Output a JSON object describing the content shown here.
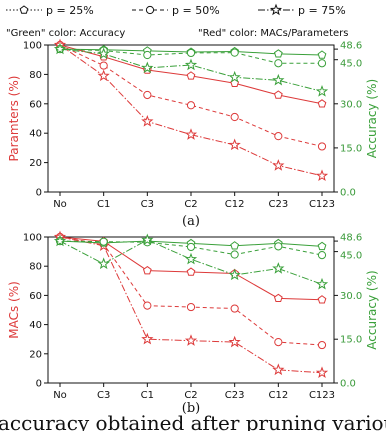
{
  "legend": {
    "entries": [
      {
        "label": "p = 25%",
        "marker": "pentagon",
        "dash": "1.5,2"
      },
      {
        "label": "p = 50%",
        "marker": "circle",
        "dash": "4,3"
      },
      {
        "label": "p = 75%",
        "marker": "star",
        "dash": "7,2,1.5,2"
      }
    ]
  },
  "notes": {
    "green": "\"Green\" color: Accuracy",
    "red": "\"Red\" color: MACs/Parameters"
  },
  "caption_fragment": "accuracy obtained after pruning various",
  "colors": {
    "red": "#dd3a3a",
    "green": "#3aa03a"
  },
  "chart_data": [
    {
      "type": "line",
      "panel_label": "(a)",
      "categories": [
        "No",
        "C1",
        "C3",
        "C2",
        "C12",
        "C23",
        "C123"
      ],
      "ylabel": "Paramters (%)",
      "ylim": [
        0,
        100
      ],
      "yticks": [
        0,
        20,
        40,
        60,
        80,
        100
      ],
      "y2label": "Accuracy (%)",
      "y2lim": [
        0,
        50
      ],
      "y2ticks": [
        0.0,
        15.0,
        30.0,
        45.0,
        48.6
      ],
      "series": [
        {
          "name": "Parameters p = 25%",
          "axis": "left",
          "color": "red",
          "marker": "pentagon",
          "values": [
            100,
            92,
            83,
            79,
            74,
            66,
            60
          ]
        },
        {
          "name": "Parameters p = 50%",
          "axis": "left",
          "color": "red",
          "marker": "circle",
          "values": [
            100,
            86,
            66,
            59,
            51,
            38,
            31
          ]
        },
        {
          "name": "Parameters p = 75%",
          "axis": "left",
          "color": "red",
          "marker": "star",
          "values": [
            100,
            79,
            48,
            39,
            32,
            18,
            11
          ]
        },
        {
          "name": "Accuracy p = 25%",
          "axis": "right",
          "color": "green",
          "marker": "pentagon",
          "values": [
            48.6,
            48.4,
            48.0,
            47.6,
            47.8,
            47.0,
            46.6
          ]
        },
        {
          "name": "Accuracy p = 50%",
          "axis": "right",
          "color": "green",
          "marker": "circle",
          "values": [
            48.6,
            48.1,
            46.6,
            47.3,
            47.4,
            43.8,
            43.8
          ]
        },
        {
          "name": "Accuracy p = 75%",
          "axis": "right",
          "color": "green",
          "marker": "star",
          "values": [
            48.6,
            47.0,
            42.2,
            43.2,
            39.0,
            38.0,
            34.2
          ]
        }
      ]
    },
    {
      "type": "line",
      "panel_label": "(b)",
      "categories": [
        "No",
        "C3",
        "C1",
        "C2",
        "C23",
        "C12",
        "C123"
      ],
      "ylabel": "MACs (%)",
      "ylim": [
        0,
        100
      ],
      "yticks": [
        0,
        20,
        40,
        60,
        80,
        100
      ],
      "y2label": "Accuracy (%)",
      "y2lim": [
        0,
        50
      ],
      "y2ticks": [
        0.0,
        15.0,
        30.0,
        45.0,
        48.6
      ],
      "series": [
        {
          "name": "MACs p = 25%",
          "axis": "left",
          "color": "red",
          "marker": "pentagon",
          "values": [
            100,
            97,
            77,
            76,
            75,
            58,
            57
          ]
        },
        {
          "name": "MACs p = 50%",
          "axis": "left",
          "color": "red",
          "marker": "circle",
          "values": [
            100,
            95,
            53,
            52,
            51,
            28,
            26
          ]
        },
        {
          "name": "MACs p = 75%",
          "axis": "left",
          "color": "red",
          "marker": "star",
          "values": [
            100,
            94,
            30,
            29,
            28,
            9,
            7
          ]
        },
        {
          "name": "Accuracy p = 25%",
          "axis": "right",
          "color": "green",
          "marker": "pentagon",
          "values": [
            48.6,
            48.0,
            48.6,
            47.8,
            47.0,
            47.8,
            46.8
          ]
        },
        {
          "name": "Accuracy p = 50%",
          "axis": "right",
          "color": "green",
          "marker": "circle",
          "values": [
            48.6,
            48.4,
            48.2,
            46.6,
            44.0,
            46.8,
            43.8
          ]
        },
        {
          "name": "Accuracy p = 75%",
          "axis": "right",
          "color": "green",
          "marker": "star",
          "values": [
            48.6,
            40.8,
            49.0,
            42.4,
            37.0,
            39.2,
            33.8
          ]
        }
      ]
    }
  ]
}
